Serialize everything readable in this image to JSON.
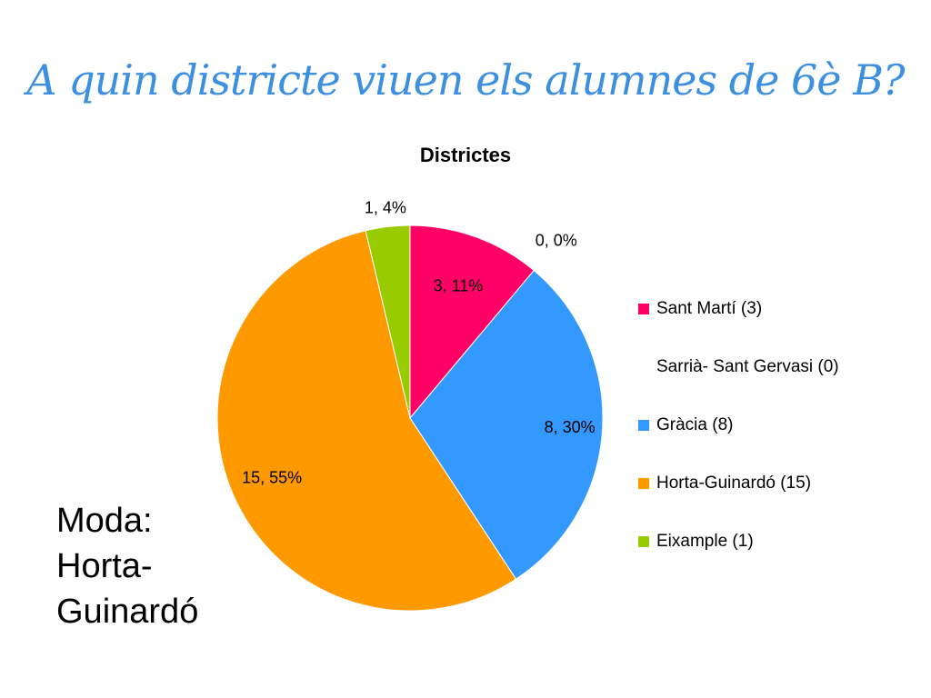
{
  "slide": {
    "title": "A quin districte viuen els alumnes de 6è B?",
    "moda_lines": [
      "Moda:",
      "Horta-",
      "Guinardó"
    ]
  },
  "colors": {
    "title": "#3d8fe0",
    "Sant Martí": "#ff0066",
    "Sarrià- Sant Gervasi": "#ffffff",
    "Gràcia": "#3399ff",
    "Horta-Guinardó": "#ff9900",
    "Eixample": "#99cc00"
  },
  "chart_data": {
    "type": "pie",
    "title": "Districtes",
    "legend_position": "right",
    "slices": [
      {
        "legend": "Sant Martí (3)",
        "value": 3,
        "percent": 11,
        "label": "3, 11%",
        "color": "#ff0066"
      },
      {
        "legend": "Sarrià- Sant Gervasi (0)",
        "value": 0,
        "percent": 0,
        "label": "0, 0%",
        "color": "#ffffff"
      },
      {
        "legend": "Gràcia (8)",
        "value": 8,
        "percent": 30,
        "label": "8, 30%",
        "color": "#3399ff"
      },
      {
        "legend": "Horta-Guinardó (15)",
        "value": 15,
        "percent": 55,
        "label": "15, 55%",
        "color": "#ff9900"
      },
      {
        "legend": "Eixample (1)",
        "value": 1,
        "percent": 4,
        "label": "1, 4%",
        "color": "#99cc00"
      }
    ]
  }
}
